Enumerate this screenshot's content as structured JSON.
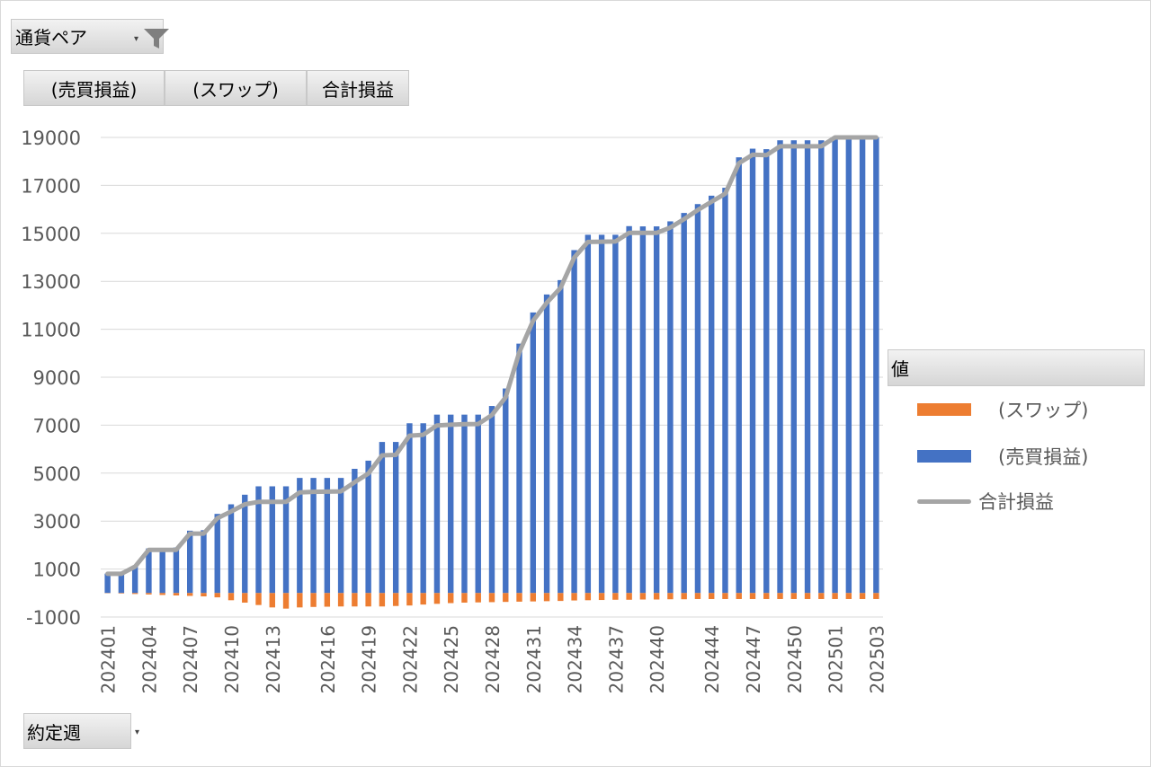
{
  "filters": {
    "currency_pair": {
      "label": "通貨ペア",
      "icon": "funnel-icon"
    },
    "agreed_week": {
      "label": "約定週"
    }
  },
  "value_fields": {
    "trade_pl": "(売買損益)",
    "swap": "(スワップ)",
    "total_pl": "合計損益"
  },
  "legend": {
    "title": "値",
    "items": [
      {
        "label": "(スワップ)",
        "color": "#ed7d31"
      },
      {
        "label": "(売買損益)",
        "color": "#4472c4"
      },
      {
        "label": "合計損益",
        "color": "#a5a5a5"
      }
    ]
  },
  "chart_data": {
    "type": "bar",
    "stacked": true,
    "ylim": [
      -1000,
      19000
    ],
    "yticks": [
      -1000,
      1000,
      3000,
      5000,
      7000,
      9000,
      11000,
      13000,
      15000,
      17000,
      19000
    ],
    "xtick_labels": [
      "202401",
      "202404",
      "202407",
      "202410",
      "202413",
      "202416",
      "202419",
      "202422",
      "202425",
      "202428",
      "202431",
      "202434",
      "202437",
      "202440",
      "202444",
      "202447",
      "202450",
      "202501",
      "202503"
    ],
    "grid": true,
    "legend_position": "right",
    "series": [
      {
        "name": "(スワップ)",
        "kind": "bar",
        "color": "#ed7d31",
        "values": [
          -10,
          -20,
          -40,
          -60,
          -80,
          -100,
          -120,
          -140,
          -180,
          -300,
          -400,
          -500,
          -600,
          -650,
          -600,
          -580,
          -570,
          -560,
          -560,
          -560,
          -560,
          -540,
          -520,
          -480,
          -450,
          -420,
          -400,
          -390,
          -380,
          -370,
          -360,
          -350,
          -340,
          -330,
          -310,
          -300,
          -290,
          -280,
          -280,
          -270,
          -270,
          -260,
          -260,
          -250,
          -250,
          -250,
          -250,
          -250,
          -250,
          -250,
          -250,
          -250,
          -250,
          -250,
          -250,
          -250,
          -250
        ]
      },
      {
        "name": "(売買損益)",
        "kind": "bar",
        "color": "#4472c4",
        "values": [
          810,
          820,
          1140,
          1860,
          1880,
          1900,
          2600,
          2620,
          3300,
          3700,
          4100,
          4450,
          4450,
          4450,
          4800,
          4800,
          4800,
          4800,
          5180,
          5520,
          6300,
          6300,
          7080,
          7080,
          7440,
          7440,
          7440,
          7440,
          7800,
          8530,
          10400,
          11700,
          12450,
          13050,
          14300,
          14940,
          14940,
          14940,
          15300,
          15290,
          15290,
          15500,
          15850,
          16220,
          16570,
          16900,
          18170,
          18530,
          18510,
          18880,
          18880,
          18880,
          18880,
          19600,
          19800,
          19900,
          20000
        ]
      },
      {
        "name": "合計損益",
        "kind": "line",
        "color": "#a5a5a5",
        "values": [
          800,
          800,
          1100,
          1800,
          1800,
          1800,
          2480,
          2480,
          3120,
          3400,
          3700,
          3800,
          3800,
          3800,
          4200,
          4220,
          4230,
          4240,
          4620,
          4980,
          5740,
          5760,
          6560,
          6600,
          6990,
          7020,
          7040,
          7050,
          7420,
          8160,
          10040,
          11350,
          12110,
          12720,
          13990,
          14640,
          14650,
          14660,
          15020,
          15020,
          15020,
          15240,
          15590,
          15970,
          16320,
          16650,
          17920,
          18280,
          18260,
          18630,
          18630,
          18630,
          18630,
          19350,
          19550,
          19650,
          19750
        ]
      }
    ]
  }
}
